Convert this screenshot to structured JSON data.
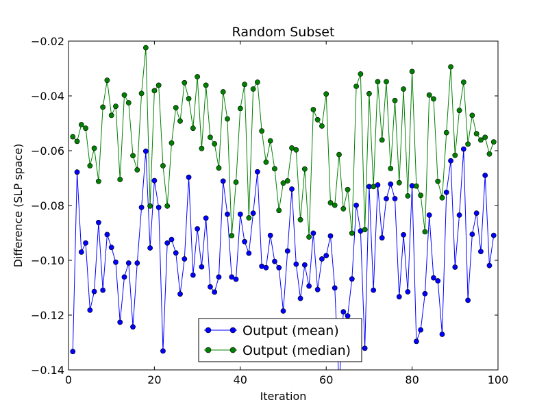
{
  "chart_data": {
    "type": "line",
    "title": "Random Subset",
    "xlabel": "Iteration",
    "ylabel": "Difference (SLP space)",
    "xlim": [
      0,
      100
    ],
    "ylim": [
      -0.14,
      -0.02
    ],
    "xticks": [
      0,
      20,
      40,
      60,
      80,
      100
    ],
    "yticks": [
      -0.14,
      -0.12,
      -0.1,
      -0.08,
      -0.06,
      -0.04,
      -0.02
    ],
    "xtick_labels": [
      "0",
      "20",
      "40",
      "60",
      "80",
      "100"
    ],
    "ytick_labels": [
      "−0.14",
      "−0.12",
      "−0.10",
      "−0.08",
      "−0.06",
      "−0.04",
      "−0.02"
    ],
    "grid": false,
    "legend_position": "lower-center",
    "x": [
      1,
      2,
      3,
      4,
      5,
      6,
      7,
      8,
      9,
      10,
      11,
      12,
      13,
      14,
      15,
      16,
      17,
      18,
      19,
      20,
      21,
      22,
      23,
      24,
      25,
      26,
      27,
      28,
      29,
      30,
      31,
      32,
      33,
      34,
      35,
      36,
      37,
      38,
      39,
      40,
      41,
      42,
      43,
      44,
      45,
      46,
      47,
      48,
      49,
      50,
      51,
      52,
      53,
      54,
      55,
      56,
      57,
      58,
      59,
      60,
      61,
      62,
      63,
      64,
      65,
      66,
      67,
      68,
      69,
      70,
      71,
      72,
      73,
      74,
      75,
      76,
      77,
      78,
      79,
      80,
      81,
      82,
      83,
      84,
      85,
      86,
      87,
      88,
      89,
      90,
      91,
      92,
      93,
      94,
      95,
      96,
      97,
      98,
      99
    ],
    "series": [
      {
        "name": "Output (mean)",
        "color": "#0000ff",
        "marker": "circle",
        "values": [
          -0.1333,
          -0.0678,
          -0.097,
          -0.0937,
          -0.1182,
          -0.1114,
          -0.0862,
          -0.1109,
          -0.0906,
          -0.0953,
          -0.1007,
          -0.1226,
          -0.1061,
          -0.101,
          -0.1243,
          -0.101,
          -0.0807,
          -0.0602,
          -0.0955,
          -0.0709,
          -0.0807,
          -0.1331,
          -0.0937,
          -0.0924,
          -0.0973,
          -0.1123,
          -0.0995,
          -0.0697,
          -0.1054,
          -0.0885,
          -0.1024,
          -0.0846,
          -0.1097,
          -0.1116,
          -0.1061,
          -0.0711,
          -0.0832,
          -0.1061,
          -0.1069,
          -0.0832,
          -0.0932,
          -0.0974,
          -0.0828,
          -0.0677,
          -0.1022,
          -0.1027,
          -0.0909,
          -0.1004,
          -0.1027,
          -0.1185,
          -0.0966,
          -0.074,
          -0.1014,
          -0.1139,
          -0.1017,
          -0.1094,
          -0.0901,
          -0.1107,
          -0.0995,
          -0.0983,
          -0.0911,
          -0.1101,
          -0.1458,
          -0.1188,
          -0.1203,
          -0.1068,
          -0.0799,
          -0.0893,
          -0.1321,
          -0.0731,
          -0.1109,
          -0.0725,
          -0.0918,
          -0.0775,
          -0.0722,
          -0.0775,
          -0.1133,
          -0.0907,
          -0.1115,
          -0.0728,
          -0.1296,
          -0.1254,
          -0.1122,
          -0.0835,
          -0.1064,
          -0.1075,
          -0.127,
          -0.0752,
          -0.0637,
          -0.1025,
          -0.0835,
          -0.0594,
          -0.1146,
          -0.0905,
          -0.0828,
          -0.0968,
          -0.069,
          -0.1019,
          -0.0909
        ]
      },
      {
        "name": "Output (median)",
        "color": "#008000",
        "marker": "circle",
        "values": [
          -0.0549,
          -0.0566,
          -0.0505,
          -0.0518,
          -0.0655,
          -0.0591,
          -0.0712,
          -0.0441,
          -0.0343,
          -0.0471,
          -0.0438,
          -0.0705,
          -0.0397,
          -0.0425,
          -0.0618,
          -0.067,
          -0.0391,
          -0.0224,
          -0.0802,
          -0.0381,
          -0.0361,
          -0.0655,
          -0.0802,
          -0.0572,
          -0.0443,
          -0.0492,
          -0.0352,
          -0.041,
          -0.0518,
          -0.033,
          -0.0592,
          -0.0361,
          -0.0551,
          -0.0575,
          -0.0663,
          -0.0385,
          -0.0484,
          -0.091,
          -0.0715,
          -0.0446,
          -0.0358,
          -0.0845,
          -0.0375,
          -0.035,
          -0.0528,
          -0.0642,
          -0.0564,
          -0.0666,
          -0.0818,
          -0.0718,
          -0.071,
          -0.059,
          -0.0597,
          -0.0852,
          -0.0667,
          -0.0915,
          -0.045,
          -0.0487,
          -0.051,
          -0.0393,
          -0.079,
          -0.0799,
          -0.0614,
          -0.0812,
          -0.0742,
          -0.0901,
          -0.0365,
          -0.032,
          -0.0888,
          -0.0392,
          -0.0731,
          -0.0348,
          -0.0561,
          -0.0348,
          -0.0665,
          -0.0417,
          -0.0717,
          -0.0375,
          -0.0765,
          -0.0311,
          -0.0729,
          -0.0763,
          -0.0896,
          -0.0397,
          -0.0411,
          -0.0712,
          -0.0772,
          -0.0534,
          -0.0294,
          -0.0617,
          -0.0453,
          -0.035,
          -0.0576,
          -0.0471,
          -0.0538,
          -0.0561,
          -0.0551,
          -0.0612,
          -0.0568
        ]
      }
    ]
  }
}
